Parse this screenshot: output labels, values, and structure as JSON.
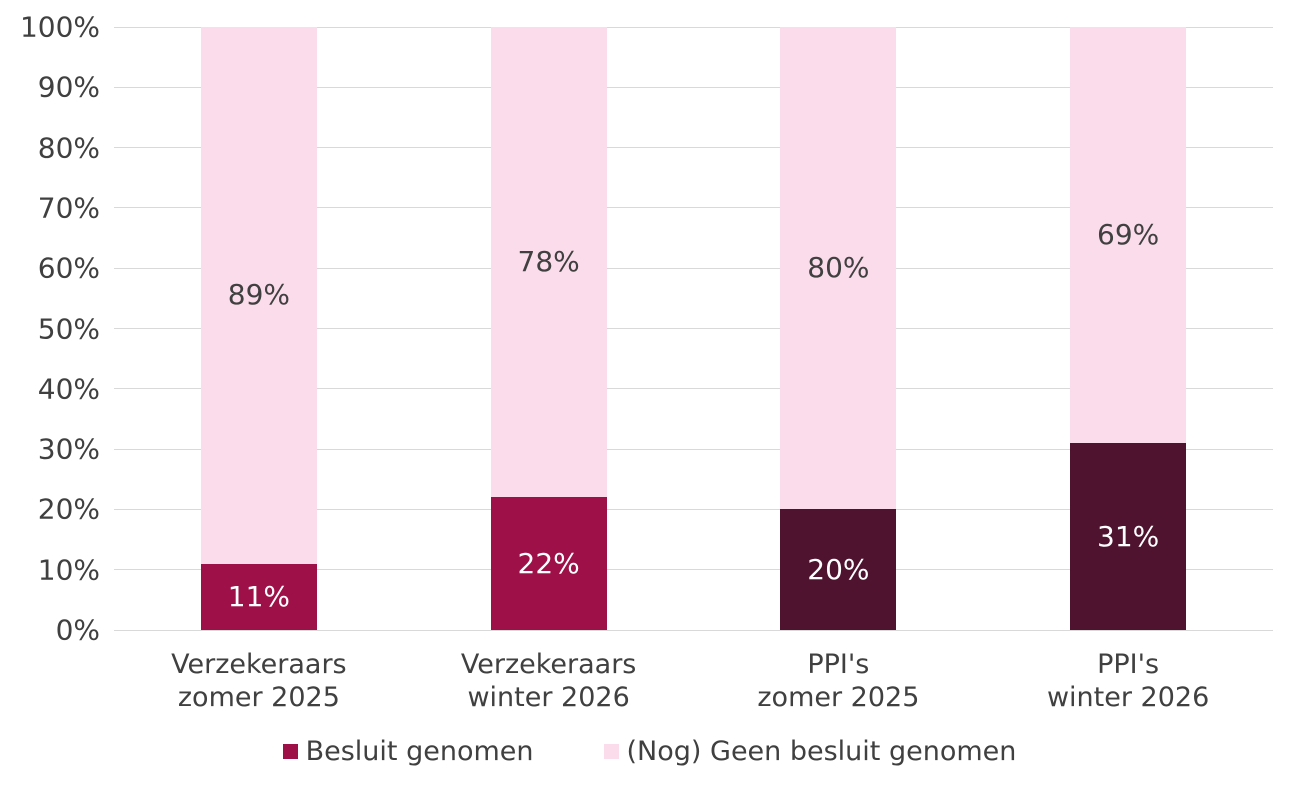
{
  "chart_data": {
    "type": "bar",
    "stacked": true,
    "title": "",
    "xlabel": "",
    "ylabel": "",
    "categories": [
      "Verzekeraars\nzomer 2025",
      "Verzekeraars\nwinter 2026",
      "PPI's\nzomer 2025",
      "PPI's\nwinter 2026"
    ],
    "series": [
      {
        "name": "Besluit genomen",
        "values": [
          11,
          22,
          20,
          31
        ],
        "data_labels": [
          "11%",
          "22%",
          "20%",
          "31%"
        ],
        "bar_colors": [
          "#9D1148",
          "#9D1148",
          "#4F122F",
          "#4F122F"
        ],
        "label_color": "#FFFFFF",
        "legend_color": "#9D1148"
      },
      {
        "name": "(Nog) Geen besluit genomen",
        "values": [
          89,
          78,
          80,
          69
        ],
        "data_labels": [
          "89%",
          "78%",
          "80%",
          "69%"
        ],
        "bar_colors": [
          "#FBDCEA",
          "#FBDCEA",
          "#FBDCEA",
          "#FBDCEA"
        ],
        "label_color": "#404040",
        "legend_color": "#FBDCEA"
      }
    ],
    "ylim": [
      0,
      100
    ],
    "ytick_step": 10,
    "ytick_labels": [
      "0%",
      "10%",
      "20%",
      "30%",
      "40%",
      "50%",
      "60%",
      "70%",
      "80%",
      "90%",
      "100%"
    ],
    "grid": true,
    "legend_position": "bottom",
    "colors": {
      "grid": "#D9D9D9",
      "axis_text": "#404040",
      "background": "#FFFFFF"
    }
  }
}
